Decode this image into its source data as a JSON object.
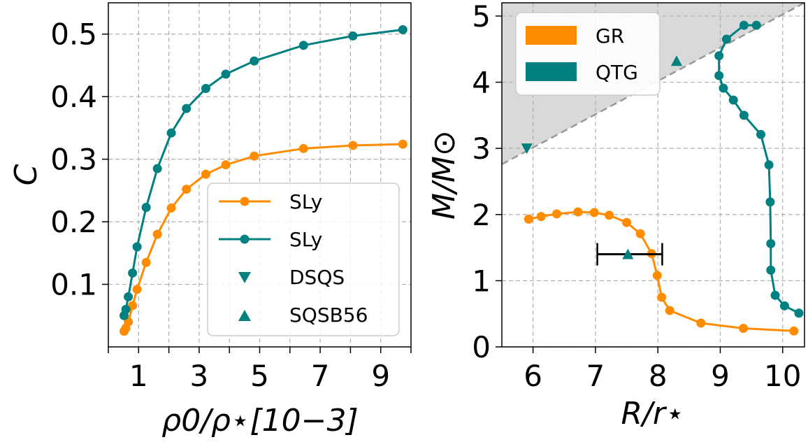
{
  "chart_data": [
    {
      "type": "line",
      "xlabel": "ρ0/ρ⋆[10−3]",
      "ylabel": "C",
      "xlim": [
        0,
        10
      ],
      "ylim": [
        0,
        0.55
      ],
      "xticks": [
        1,
        3,
        5,
        7,
        9
      ],
      "xtick_labels": [
        "1",
        "3",
        "5",
        "7",
        "9"
      ],
      "xminor_ticks": [
        0,
        2,
        4,
        6,
        8,
        10
      ],
      "yticks": [
        0.1,
        0.2,
        0.3,
        0.4,
        0.5
      ],
      "ytick_labels": [
        "0.1",
        "0.2",
        "0.3",
        "0.4",
        "0.5"
      ],
      "grid": true,
      "legend_position": "center-right",
      "series": [
        {
          "name": "SLy",
          "color": "#ff8c00",
          "marker": "circle",
          "x": [
            0.52,
            0.58,
            0.66,
            0.8,
            0.95,
            1.25,
            1.62,
            2.08,
            2.58,
            3.22,
            3.88,
            4.82,
            6.45,
            8.08,
            9.73
          ],
          "y": [
            0.025,
            0.03,
            0.04,
            0.066,
            0.092,
            0.135,
            0.18,
            0.222,
            0.252,
            0.276,
            0.291,
            0.305,
            0.317,
            0.322,
            0.324
          ]
        },
        {
          "name": "SLy",
          "color": "#008080",
          "marker": "circle",
          "x": [
            0.52,
            0.58,
            0.66,
            0.8,
            0.95,
            1.25,
            1.62,
            2.08,
            2.58,
            3.22,
            3.88,
            4.82,
            6.45,
            8.08,
            9.73
          ],
          "y": [
            0.05,
            0.06,
            0.08,
            0.118,
            0.16,
            0.223,
            0.285,
            0.342,
            0.381,
            0.413,
            0.436,
            0.457,
            0.482,
            0.497,
            0.507
          ]
        },
        {
          "name": "DSQS",
          "color": "#008080",
          "marker": "triangle-down",
          "x": [],
          "y": []
        },
        {
          "name": "SQSB56",
          "color": "#008080",
          "marker": "triangle-up",
          "x": [],
          "y": []
        }
      ]
    },
    {
      "type": "line",
      "xlabel": "R/r⋆",
      "ylabel": "M/M⊙",
      "xlim": [
        5.5,
        10.35
      ],
      "ylim": [
        0,
        5.2
      ],
      "xticks": [
        6,
        7,
        8,
        9,
        10
      ],
      "xtick_labels": [
        "6",
        "7",
        "8",
        "9",
        "10"
      ],
      "yticks": [
        0,
        1,
        2,
        3,
        4,
        5
      ],
      "ytick_labels": [
        "0",
        "1",
        "2",
        "3",
        "4",
        "5"
      ],
      "grid": true,
      "legend_position": "upper-left",
      "shaded_region": {
        "line_x": [
          5.5,
          10.35
        ],
        "line_y": [
          2.76,
          5.2
        ],
        "color": "#d9d9d9",
        "line_color": "#999999"
      },
      "series": [
        {
          "name": "GR",
          "color": "#ff8c00",
          "marker": "circle",
          "x": [
            5.93,
            6.13,
            6.38,
            6.72,
            6.98,
            7.22,
            7.5,
            7.72,
            7.9,
            7.99,
            8.06,
            8.19,
            8.69,
            9.37,
            10.18
          ],
          "y": [
            1.93,
            1.97,
            2.01,
            2.04,
            2.03,
            1.99,
            1.88,
            1.71,
            1.41,
            1.08,
            0.75,
            0.55,
            0.36,
            0.28,
            0.24
          ]
        },
        {
          "name": "QTG",
          "color": "#008080",
          "marker": "circle",
          "x": [
            10.26,
            10.03,
            9.88,
            9.81,
            9.81,
            9.8,
            9.78,
            9.65,
            9.38,
            9.21,
            9.05,
            8.98,
            8.98,
            9.1,
            9.38,
            9.58
          ],
          "y": [
            0.51,
            0.62,
            0.78,
            1.16,
            1.56,
            2.19,
            2.75,
            3.21,
            3.5,
            3.73,
            3.91,
            4.1,
            4.4,
            4.65,
            4.86,
            4.86
          ]
        }
      ],
      "markers": [
        {
          "name": "DSQS",
          "shape": "triangle-down",
          "color": "#008080",
          "x": 5.9,
          "y": 3.0
        },
        {
          "name": "SQSB56",
          "shape": "triangle-up",
          "color": "#008080",
          "x": 8.3,
          "y": 4.32
        },
        {
          "name": "SQSB56",
          "shape": "triangle-up",
          "color": "#008080",
          "x": 7.52,
          "y": 1.4,
          "xerr": [
            7.03,
            8.07
          ]
        }
      ]
    }
  ]
}
